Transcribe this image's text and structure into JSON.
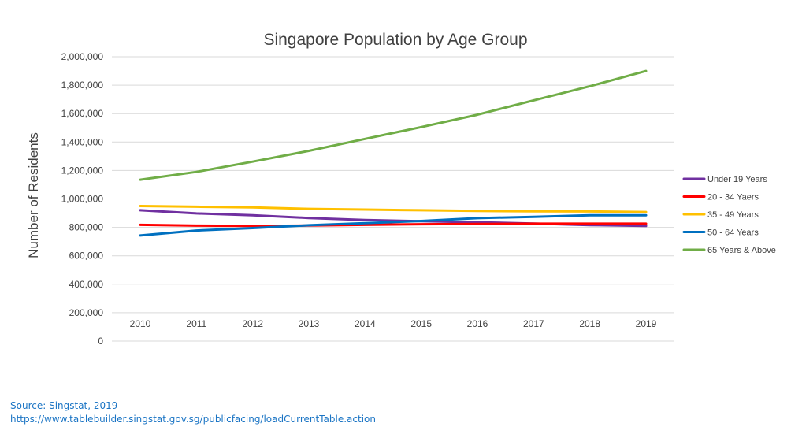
{
  "chart_data": {
    "type": "line",
    "title": "Singapore Population by Age Group",
    "ylabel": "Number of Residents",
    "xlabel": "",
    "x": [
      "2010",
      "2011",
      "2012",
      "2013",
      "2014",
      "2015",
      "2016",
      "2017",
      "2018",
      "2019"
    ],
    "ylim": [
      0,
      2000000
    ],
    "yticks": [
      "0",
      "200,000",
      "400,000",
      "600,000",
      "800,000",
      "1,000,000",
      "1,200,000",
      "1,400,000",
      "1,600,000",
      "1,800,000",
      "2,000,000"
    ],
    "grid": true,
    "legend_position": "right",
    "series": [
      {
        "name": "Under 19 Years",
        "color": "#7030a0",
        "values": [
          920000,
          898000,
          885000,
          866000,
          852000,
          843000,
          836000,
          827000,
          816000,
          810000
        ]
      },
      {
        "name": "20 - 34 Yaers",
        "color": "#ff0000",
        "values": [
          818000,
          812000,
          810000,
          813000,
          818000,
          822000,
          824000,
          826000,
          826000,
          826000
        ]
      },
      {
        "name": "35 - 49 Years",
        "color": "#ffc000",
        "values": [
          950000,
          945000,
          940000,
          930000,
          925000,
          920000,
          915000,
          913000,
          912000,
          908000
        ]
      },
      {
        "name": "50 - 64 Years",
        "color": "#0070c0",
        "values": [
          743000,
          778000,
          795000,
          815000,
          830000,
          845000,
          865000,
          874000,
          885000,
          885000
        ]
      },
      {
        "name": "65 Years & Above",
        "color": "#70ad47",
        "values": [
          1135000,
          1190000,
          1262000,
          1338000,
          1422000,
          1505000,
          1592000,
          1693000,
          1793000,
          1900000
        ]
      }
    ]
  },
  "source": {
    "line1": "Source: Singstat, 2019",
    "line2": "https://www.tablebuilder.singstat.gov.sg/publicfacing/loadCurrentTable.action"
  }
}
